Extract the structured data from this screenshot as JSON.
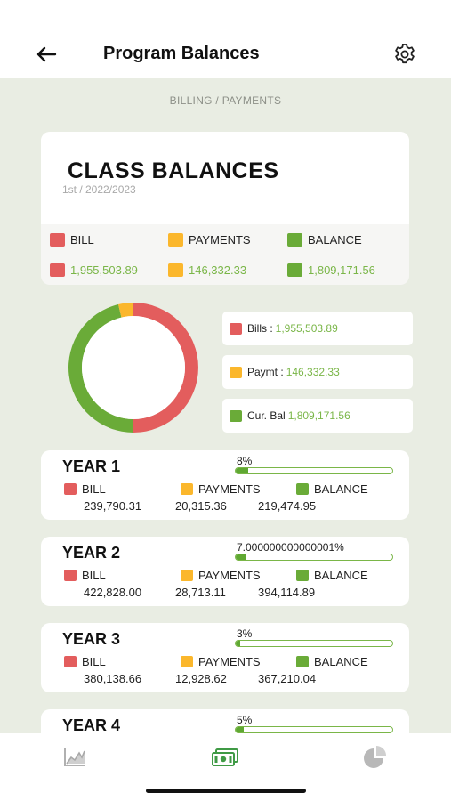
{
  "header": {
    "title": "Program Balances",
    "back_icon": "arrow-left-icon",
    "settings_icon": "gear-icon"
  },
  "breadcrumb": "BILLING / PAYMENTS",
  "summary": {
    "title": "CLASS BALANCES",
    "subtitle": "1st / 2022/2023",
    "legend": {
      "bill": "BILL",
      "payments": "PAYMENTS",
      "balance": "BALANCE"
    },
    "values": {
      "bill": "1,955,503.89",
      "payments": "146,332.33",
      "balance": "1,809,171.56"
    }
  },
  "chart_data": {
    "type": "pie",
    "style": "donut",
    "categories": [
      "Bills",
      "Paymt",
      "Cur. Bal"
    ],
    "values": [
      1955503.89,
      146332.33,
      1809171.56
    ],
    "colors": [
      "#e35d5d",
      "#fbb72c",
      "#6aab38"
    ]
  },
  "donut_legend": [
    {
      "label": "Bills :",
      "value": "1,955,503.89"
    },
    {
      "label": "Paymt :",
      "value": "146,332.33"
    },
    {
      "label": "Cur. Bal",
      "value": "1,809,171.56"
    }
  ],
  "years": [
    {
      "title": "YEAR 1",
      "percent_label": "8%",
      "percent": 8,
      "bill_label": "BILL",
      "payments_label": "PAYMENTS",
      "balance_label": "BALANCE",
      "bill": "239,790.31",
      "payments": "20,315.36",
      "balance": "219,474.95"
    },
    {
      "title": "YEAR 2",
      "percent_label": "7.000000000000001%",
      "percent": 7,
      "bill_label": "BILL",
      "payments_label": "PAYMENTS",
      "balance_label": "BALANCE",
      "bill": "422,828.00",
      "payments": "28,713.11",
      "balance": "394,114.89"
    },
    {
      "title": "YEAR 3",
      "percent_label": "3%",
      "percent": 3,
      "bill_label": "BILL",
      "payments_label": "PAYMENTS",
      "balance_label": "BALANCE",
      "bill": "380,138.66",
      "payments": "12,928.62",
      "balance": "367,210.04"
    },
    {
      "title": "YEAR 4",
      "percent_label": "5%",
      "percent": 5
    }
  ],
  "colors": {
    "bill": "#e35d5d",
    "payments": "#fbb72c",
    "balance": "#6aab38",
    "value_text": "#7ab648"
  },
  "bottom_nav": {
    "items": [
      "chart-line-icon",
      "money-icon",
      "pie-chart-icon"
    ],
    "active": "money-icon"
  }
}
